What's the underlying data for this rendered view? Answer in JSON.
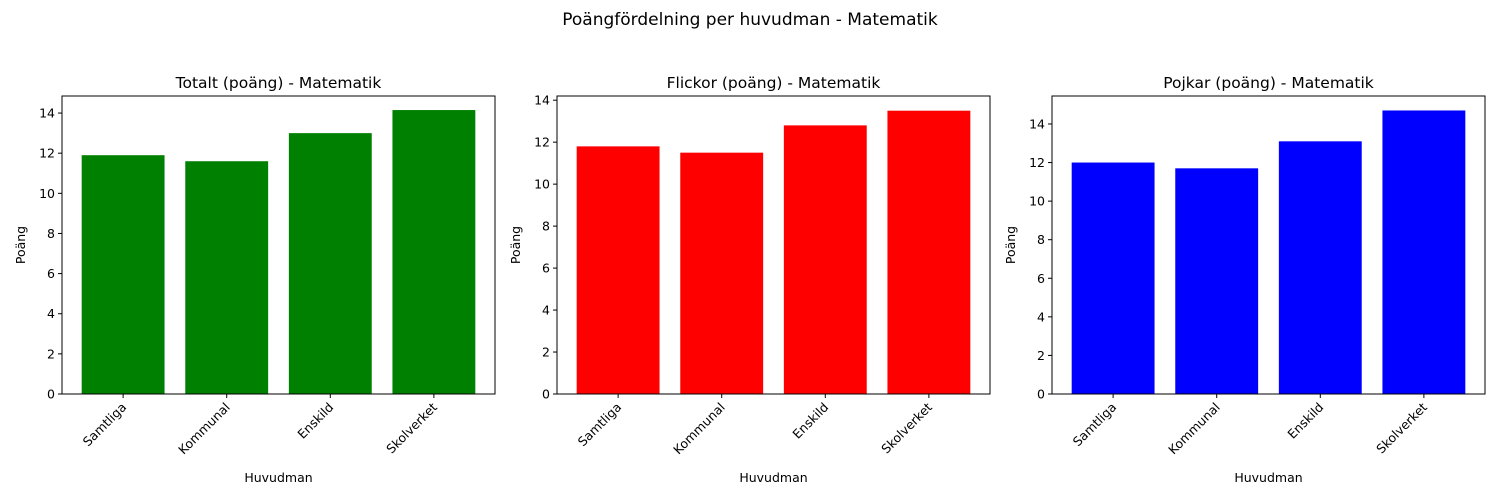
{
  "suptitle": "Poängfördelning per huvudman - Matematik",
  "chart_data": [
    {
      "type": "bar",
      "title": "Totalt (poäng) - Matematik",
      "xlabel": "Huvudman",
      "ylabel": "Poäng",
      "categories": [
        "Samtliga",
        "Kommunal",
        "Enskild",
        "Skolverket"
      ],
      "values": [
        11.9,
        11.6,
        13.0,
        14.15
      ],
      "ylim": [
        0,
        14.85
      ],
      "yticks": [
        0,
        2,
        4,
        6,
        8,
        10,
        12,
        14
      ],
      "color": "#008000"
    },
    {
      "type": "bar",
      "title": "Flickor (poäng) - Matematik",
      "xlabel": "Huvudman",
      "ylabel": "Poäng",
      "categories": [
        "Samtliga",
        "Kommunal",
        "Enskild",
        "Skolverket"
      ],
      "values": [
        11.8,
        11.5,
        12.8,
        13.5
      ],
      "ylim": [
        0,
        14.2
      ],
      "yticks": [
        0,
        2,
        4,
        6,
        8,
        10,
        12,
        14
      ],
      "color": "#ff0000"
    },
    {
      "type": "bar",
      "title": "Pojkar (poäng) - Matematik",
      "xlabel": "Huvudman",
      "ylabel": "Poäng",
      "categories": [
        "Samtliga",
        "Kommunal",
        "Enskild",
        "Skolverket"
      ],
      "values": [
        12.0,
        11.7,
        13.1,
        14.7
      ],
      "ylim": [
        0,
        15.45
      ],
      "yticks": [
        0,
        2,
        4,
        6,
        8,
        10,
        12,
        14
      ],
      "color": "#0000ff"
    }
  ]
}
